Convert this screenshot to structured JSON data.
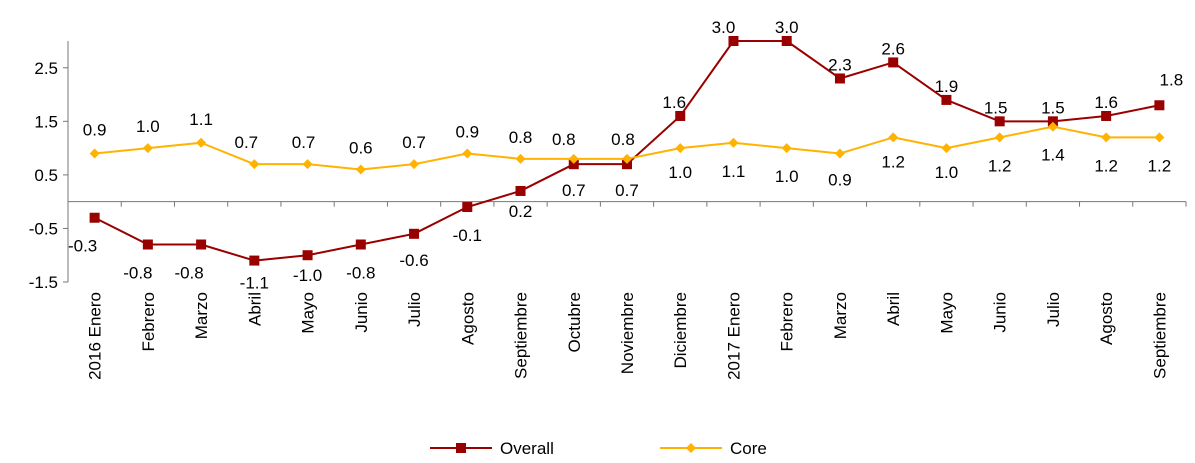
{
  "chart_data": {
    "type": "line",
    "title": "",
    "xlabel": "",
    "ylabel": "",
    "ylim": [
      -1.5,
      3.0
    ],
    "yticks": [
      -1.5,
      -0.5,
      0.5,
      1.5,
      2.5
    ],
    "ytick_labels": [
      "-1.5",
      "-0.5",
      "0.5",
      "1.5",
      "2.5"
    ],
    "categories": [
      "2016 Enero",
      "Febrero",
      "Marzo",
      "Abril",
      "Mayo",
      "Junio",
      "Julio",
      "Agosto",
      "Septiembre",
      "Octubre",
      "Noviembre",
      "Diciembre",
      "2017 Enero",
      "Febrero",
      "Marzo",
      "Abril",
      "Mayo",
      "Junio",
      "Julio",
      "Agosto",
      "Septiembre"
    ],
    "series": [
      {
        "name": "Overall",
        "color": "#990000",
        "marker": "square",
        "values": [
          -0.3,
          -0.8,
          -0.8,
          -1.1,
          -1.0,
          -0.8,
          -0.6,
          -0.1,
          0.2,
          0.7,
          0.7,
          1.6,
          3.0,
          3.0,
          2.3,
          2.6,
          1.9,
          1.5,
          1.5,
          1.6,
          1.8
        ],
        "labels": [
          "-0.3",
          "-0.8",
          "-0.8",
          "-1.1",
          "-1.0",
          "-0.8",
          "-0.6",
          "-0.1",
          "0.2",
          "0.7",
          "0.7",
          "1.6",
          "3.0",
          "3.0",
          "2.3",
          "2.6",
          "1.9",
          "1.5",
          "1.5",
          "1.6",
          "1.8"
        ]
      },
      {
        "name": "Core",
        "color": "#FFB300",
        "marker": "diamond",
        "values": [
          0.9,
          1.0,
          1.1,
          0.7,
          0.7,
          0.6,
          0.7,
          0.9,
          0.8,
          0.8,
          0.8,
          1.0,
          1.1,
          1.0,
          0.9,
          1.2,
          1.0,
          1.2,
          1.4,
          1.2,
          1.2
        ],
        "labels": [
          "0.9",
          "1.0",
          "1.1",
          "0.7",
          "0.7",
          "0.6",
          "0.7",
          "0.9",
          "0.8",
          "0.8",
          "0.8",
          "1.0",
          "1.1",
          "1.0",
          "0.9",
          "1.2",
          "1.0",
          "1.2",
          "1.4",
          "1.2",
          "1.2"
        ]
      }
    ],
    "grid": false,
    "legend_position": "bottom-center"
  }
}
